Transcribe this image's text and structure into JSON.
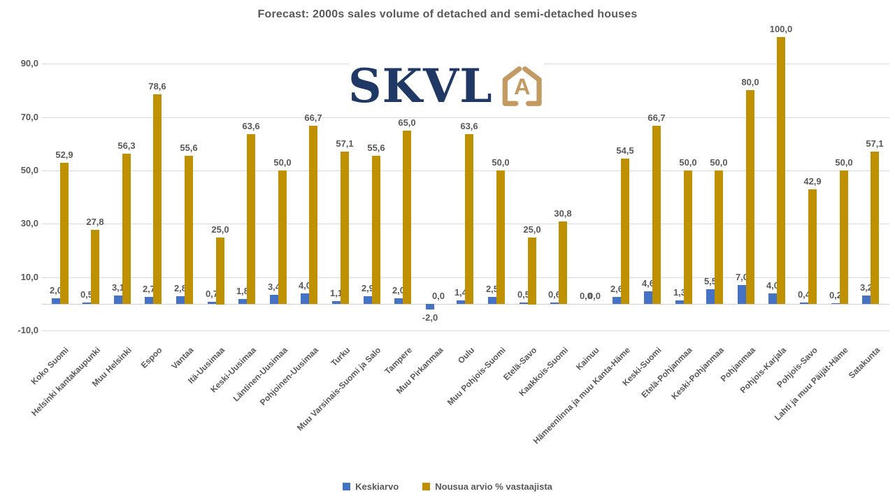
{
  "title": "Forecast: 2000s sales volume of detached and semi-detached houses",
  "logo": {
    "text": "SKVL",
    "icon_letter": "A",
    "navy_color": "#1f3864",
    "tan_color": "#c49a63"
  },
  "legend": {
    "position": "bottom"
  },
  "chart_data": {
    "type": "bar",
    "title": "Forecast: 2000s sales volume of detached and semi-detached houses",
    "categories": [
      "Koko Suomi",
      "Helsinki kantakaupunki",
      "Muu Helsinki",
      "Espoo",
      "Vantaa",
      "Itä-Uusimaa",
      "Keski-Uusimaa",
      "Läntinen-Uusimaa",
      "Pohjoinen-Uusimaa",
      "Turku",
      "Muu Varsinais-Suomi ja Salo",
      "Tampere",
      "Muu Pirkanmaa",
      "Oulu",
      "Muu Pohjois-Suomi",
      "Etelä-Savo",
      "Kaakkois-Suomi",
      "Kainuu",
      "Hämeenlinna ja muu Kanta-Häme",
      "Keski-Suomi",
      "Etelä-Pohjanmaa",
      "Keski-Pohjanmaa",
      "Pohjanmaa",
      "Pohjois-Karjala",
      "Pohjois-Savo",
      "Lahti ja muu Päijät-Häme",
      "Satakunta"
    ],
    "series": [
      {
        "name": "Keskiarvo",
        "color": "#4472c4",
        "values": [
          2.0,
          0.5,
          3.1,
          2.7,
          2.8,
          0.7,
          1.8,
          3.4,
          4.0,
          1.1,
          2.9,
          2.0,
          -2.0,
          1.4,
          2.5,
          0.5,
          0.6,
          0.0,
          2.6,
          4.6,
          1.3,
          5.5,
          7.0,
          4.0,
          0.4,
          0.2,
          3.2
        ]
      },
      {
        "name": "Nousua arvio % vastaajista",
        "color": "#bf9000",
        "values": [
          52.9,
          27.8,
          56.3,
          78.6,
          55.6,
          25.0,
          63.6,
          50.0,
          66.7,
          57.1,
          55.6,
          65.0,
          0.0,
          63.6,
          50.0,
          25.0,
          30.8,
          0.0,
          54.5,
          66.7,
          50.0,
          50.0,
          80.0,
          100.0,
          42.9,
          50.0,
          57.1
        ]
      }
    ],
    "yticks": [
      90.0,
      70.0,
      50.0,
      30.0,
      10.0,
      -10.0
    ],
    "ylim": [
      -10,
      100
    ],
    "grid": true,
    "legend_position": "bottom",
    "decimal_separator": ",",
    "data_labels": true
  }
}
